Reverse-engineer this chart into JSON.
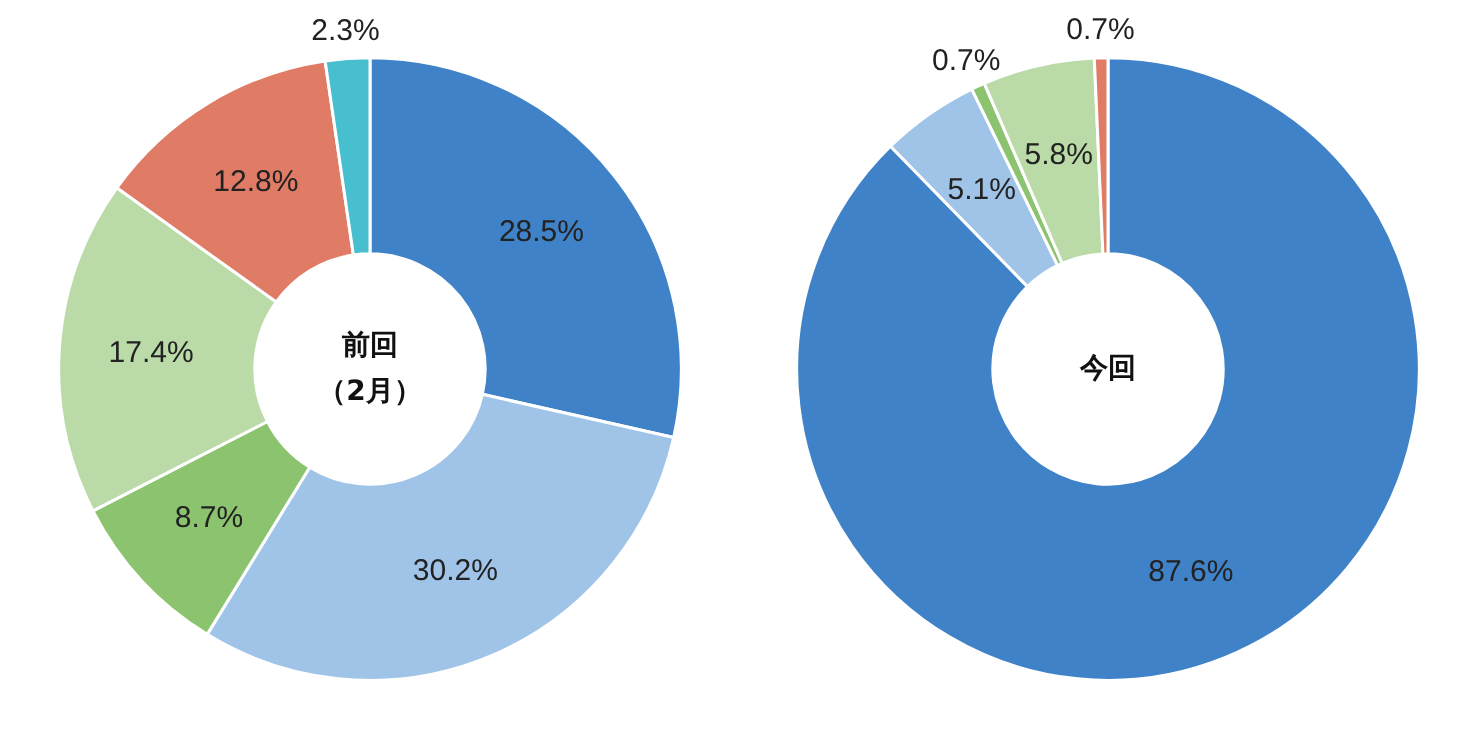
{
  "chart_data": [
    {
      "type": "donut",
      "title": "前回",
      "subtitle": "（2月）",
      "categories": [
        null,
        null,
        null,
        null,
        null,
        null
      ],
      "values": [
        28.5,
        30.2,
        8.7,
        17.4,
        12.8,
        2.3
      ],
      "colors": [
        "#3f82c8",
        "#a0c4e8",
        "#8cc36e",
        "#badba8",
        "#e07b66",
        "#47bfcf"
      ],
      "value_labels": [
        "28.5%",
        "30.2%",
        "8.7%",
        "17.4%",
        "12.8%",
        "2.3%"
      ]
    },
    {
      "type": "donut",
      "title": "今回",
      "categories": [
        null,
        null,
        null,
        null,
        null
      ],
      "values": [
        87.6,
        5.1,
        0.7,
        5.8,
        0.7
      ],
      "colors": [
        "#3f82c8",
        "#a0c4e8",
        "#8cc36e",
        "#badba8",
        "#e07b66"
      ],
      "value_labels": [
        "87.6%",
        "5.1%",
        "0.7%",
        "5.8%",
        "0.7%"
      ]
    }
  ]
}
